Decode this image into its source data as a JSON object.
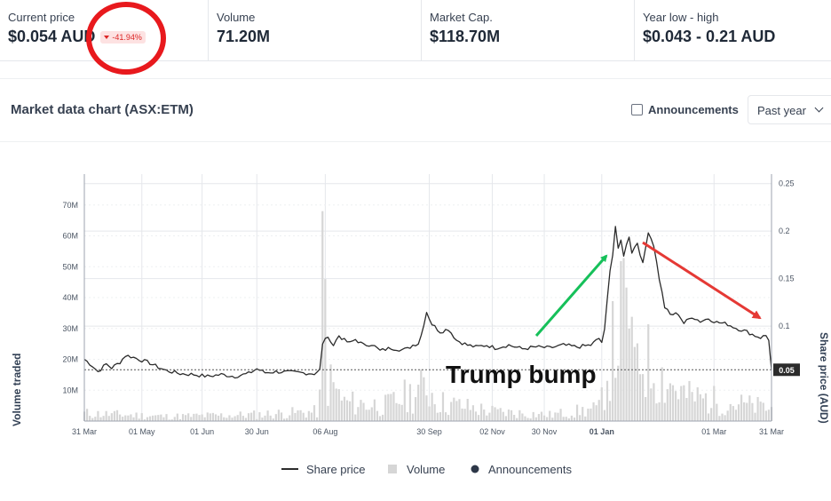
{
  "stats": {
    "current_price": {
      "label": "Current price",
      "value": "$0.054 AUD",
      "change": "-41.94%"
    },
    "volume": {
      "label": "Volume",
      "value": "71.20M"
    },
    "market_cap": {
      "label": "Market Cap.",
      "value": "$118.70M"
    },
    "year_range": {
      "label": "Year low - high",
      "value": "$0.043 - 0.21 AUD"
    }
  },
  "chart_header": {
    "title": "Market data chart (ASX:ETM)",
    "announcements_label": "Announcements",
    "announcements_checked": false,
    "range_value": "Past year"
  },
  "colors": {
    "price_line": "#2b2b2b",
    "volume_bar": "#d6d6d6",
    "grid": "#e5e7eb",
    "up_arrow": "#16c05a",
    "down_arrow": "#e53935",
    "circle": "#e8191d",
    "badge_text": "#dc2626",
    "badge_bg": "#fde2e2"
  },
  "icons": [
    "chevron-down-icon",
    "checkbox-icon",
    "triangle-down-icon"
  ],
  "chart_data": {
    "type": "line",
    "title": "",
    "xlabel": "",
    "ylabel_left": "Volume traded",
    "ylabel_right": "Share price (AUD)",
    "x_ticks": [
      "31 Mar",
      "01 May",
      "01 Jun",
      "30 Jun",
      "06 Aug",
      "30 Sep",
      "02 Nov",
      "30 Nov",
      "01 Jan",
      "01 Mar",
      "31 Mar"
    ],
    "x_tick_index": [
      0,
      21,
      43,
      63,
      88,
      126,
      149,
      168,
      189,
      230,
      251
    ],
    "bold_tick": "01 Jan",
    "ylim_left": [
      0,
      80000000
    ],
    "ylim_right": [
      0,
      0.26
    ],
    "y_ticks_left": [
      "10M",
      "20M",
      "30M",
      "40M",
      "50M",
      "60M",
      "70M"
    ],
    "y_tick_values_left": [
      10000000,
      20000000,
      30000000,
      40000000,
      50000000,
      60000000,
      70000000
    ],
    "y_ticks_right": [
      "0.05",
      "0.1",
      "0.15",
      "0.2",
      "0.25"
    ],
    "y_tick_values_right": [
      0.05,
      0.1,
      0.15,
      0.2,
      0.25
    ],
    "last_price": 0.054,
    "last_price_label": "0.05",
    "price_knots": [
      [
        0,
        0.065
      ],
      [
        3,
        0.058
      ],
      [
        5,
        0.052
      ],
      [
        8,
        0.06
      ],
      [
        10,
        0.056
      ],
      [
        13,
        0.062
      ],
      [
        15,
        0.069
      ],
      [
        17,
        0.068
      ],
      [
        20,
        0.065
      ],
      [
        24,
        0.061
      ],
      [
        26,
        0.058
      ],
      [
        30,
        0.053
      ],
      [
        35,
        0.05
      ],
      [
        40,
        0.049
      ],
      [
        45,
        0.047
      ],
      [
        50,
        0.049
      ],
      [
        55,
        0.047
      ],
      [
        60,
        0.05
      ],
      [
        63,
        0.055
      ],
      [
        66,
        0.051
      ],
      [
        70,
        0.052
      ],
      [
        78,
        0.051
      ],
      [
        84,
        0.05
      ],
      [
        86,
        0.054
      ],
      [
        87,
        0.08
      ],
      [
        88,
        0.088
      ],
      [
        90,
        0.085
      ],
      [
        91,
        0.08
      ],
      [
        93,
        0.09
      ],
      [
        95,
        0.085
      ],
      [
        97,
        0.082
      ],
      [
        99,
        0.086
      ],
      [
        102,
        0.08
      ],
      [
        105,
        0.081
      ],
      [
        108,
        0.074
      ],
      [
        112,
        0.077
      ],
      [
        116,
        0.075
      ],
      [
        118,
        0.076
      ],
      [
        120,
        0.08
      ],
      [
        122,
        0.082
      ],
      [
        123,
        0.09
      ],
      [
        125,
        0.115
      ],
      [
        127,
        0.102
      ],
      [
        130,
        0.094
      ],
      [
        133,
        0.097
      ],
      [
        136,
        0.085
      ],
      [
        140,
        0.08
      ],
      [
        143,
        0.078
      ],
      [
        147,
        0.08
      ],
      [
        150,
        0.077
      ],
      [
        155,
        0.08
      ],
      [
        160,
        0.076
      ],
      [
        165,
        0.078
      ],
      [
        170,
        0.077
      ],
      [
        175,
        0.08
      ],
      [
        180,
        0.078
      ],
      [
        185,
        0.08
      ],
      [
        188,
        0.087
      ],
      [
        189,
        0.083
      ],
      [
        190,
        0.095
      ],
      [
        192,
        0.16
      ],
      [
        193,
        0.175
      ],
      [
        194,
        0.205
      ],
      [
        195,
        0.18
      ],
      [
        196,
        0.19
      ],
      [
        197,
        0.175
      ],
      [
        199,
        0.195
      ],
      [
        200,
        0.178
      ],
      [
        202,
        0.188
      ],
      [
        204,
        0.165
      ],
      [
        206,
        0.2
      ],
      [
        208,
        0.185
      ],
      [
        210,
        0.15
      ],
      [
        212,
        0.12
      ],
      [
        214,
        0.112
      ],
      [
        217,
        0.113
      ],
      [
        219,
        0.103
      ],
      [
        222,
        0.11
      ],
      [
        225,
        0.105
      ],
      [
        228,
        0.108
      ],
      [
        231,
        0.104
      ],
      [
        235,
        0.102
      ],
      [
        238,
        0.098
      ],
      [
        242,
        0.094
      ],
      [
        245,
        0.09
      ],
      [
        247,
        0.088
      ],
      [
        249,
        0.09
      ],
      [
        250,
        0.086
      ],
      [
        251,
        0.054
      ]
    ],
    "volume_knots": [
      [
        0,
        2500000
      ],
      [
        30,
        1500000
      ],
      [
        60,
        2000000
      ],
      [
        85,
        3000000
      ],
      [
        88,
        14000000
      ],
      [
        90,
        12000000
      ],
      [
        95,
        6000000
      ],
      [
        110,
        5000000
      ],
      [
        125,
        11000000
      ],
      [
        130,
        6000000
      ],
      [
        150,
        3000000
      ],
      [
        170,
        2000000
      ],
      [
        188,
        4000000
      ],
      [
        192,
        20000000
      ],
      [
        197,
        35000000
      ],
      [
        200,
        25000000
      ],
      [
        210,
        15000000
      ],
      [
        220,
        8000000
      ],
      [
        235,
        6000000
      ],
      [
        251,
        4000000
      ]
    ],
    "volume_spikes": [
      [
        87,
        68000000
      ],
      [
        88,
        46000000
      ],
      [
        199,
        30000000
      ],
      [
        201,
        24000000
      ]
    ],
    "legend": [
      "Share price",
      "Volume",
      "Announcements"
    ],
    "annotation": "Trump bump"
  }
}
